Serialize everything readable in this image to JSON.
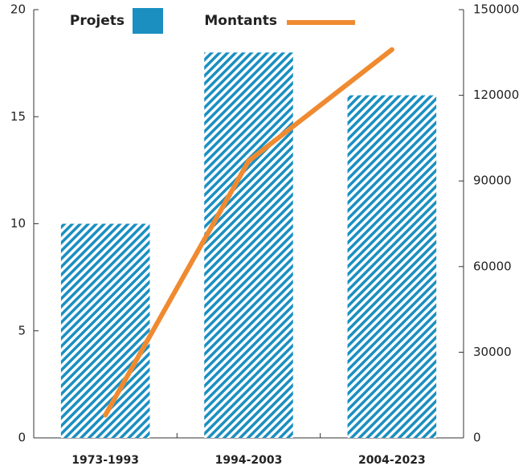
{
  "chart_data": {
    "type": "bar-line",
    "categories": [
      "1973-1993",
      "1994-2003",
      "2004-2023"
    ],
    "series": [
      {
        "name": "Projets",
        "color": "#1a8fc0",
        "values": [
          10,
          18,
          16
        ]
      },
      {
        "name": "Montants",
        "color": "#f08a30",
        "axis": "y2",
        "values": [
          8000,
          97000,
          136000
        ]
      }
    ],
    "ylim": [
      0,
      20
    ],
    "yticks": [
      0,
      5,
      10,
      15,
      20
    ],
    "y2lim": [
      0,
      150000
    ],
    "y2ticks": [
      0,
      30000,
      60000,
      90000,
      120000,
      150000
    ],
    "grid": false,
    "legend": "top"
  }
}
